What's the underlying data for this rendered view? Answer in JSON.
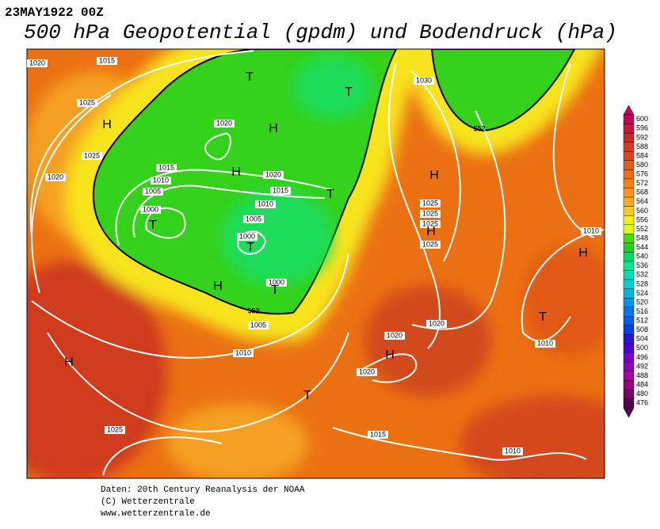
{
  "header": {
    "date": "23MAY1922 00Z",
    "title": "500 hPa Geopotential (gpdm) und Bodendruck (hPa)"
  },
  "map": {
    "isobar_labels": [
      1020,
      1015,
      1025,
      1025,
      1020,
      1015,
      1010,
      1005,
      1000,
      1020,
      1020,
      1015,
      1010,
      1005,
      1000,
      1000,
      1005,
      1010,
      1030,
      1025,
      1025,
      1025,
      1025,
      1010,
      1020,
      1020,
      1020,
      1010,
      1025,
      1015,
      1010
    ],
    "contour_labels": [
      552,
      552
    ],
    "pressure_centers": [
      "H",
      "T",
      "T",
      "H",
      "H",
      "T",
      "T",
      "T",
      "H",
      "T",
      "H",
      "H",
      "H",
      "T",
      "H",
      "H",
      "T"
    ]
  },
  "colorbar": {
    "values": [
      600,
      596,
      592,
      588,
      584,
      580,
      576,
      572,
      568,
      564,
      560,
      556,
      552,
      548,
      544,
      540,
      536,
      532,
      528,
      524,
      520,
      516,
      512,
      508,
      504,
      500,
      496,
      492,
      488,
      484,
      480,
      476
    ],
    "colors": [
      "#c8005a",
      "#c8143c",
      "#c82828",
      "#d23c1e",
      "#dc461e",
      "#e65a14",
      "#f06e0f",
      "#f58214",
      "#fa961e",
      "#faaa1e",
      "#fac81e",
      "#f5f014",
      "#dcfa14",
      "#46dc00",
      "#1ed21e",
      "#00dc64",
      "#00e68c",
      "#00dcb4",
      "#00d2d2",
      "#00b4e6",
      "#0096f0",
      "#0078f0",
      "#005af0",
      "#003cf0",
      "#2814dc",
      "#5000dc",
      "#7800c8",
      "#9600b4",
      "#aa00a0",
      "#960078",
      "#780064",
      "#5a0050"
    ]
  },
  "footer": [
    "Daten: 20th Century Reanalysis der NOAA",
    "(C) Wetterzentrale",
    "www.wetterzentrale.de"
  ]
}
